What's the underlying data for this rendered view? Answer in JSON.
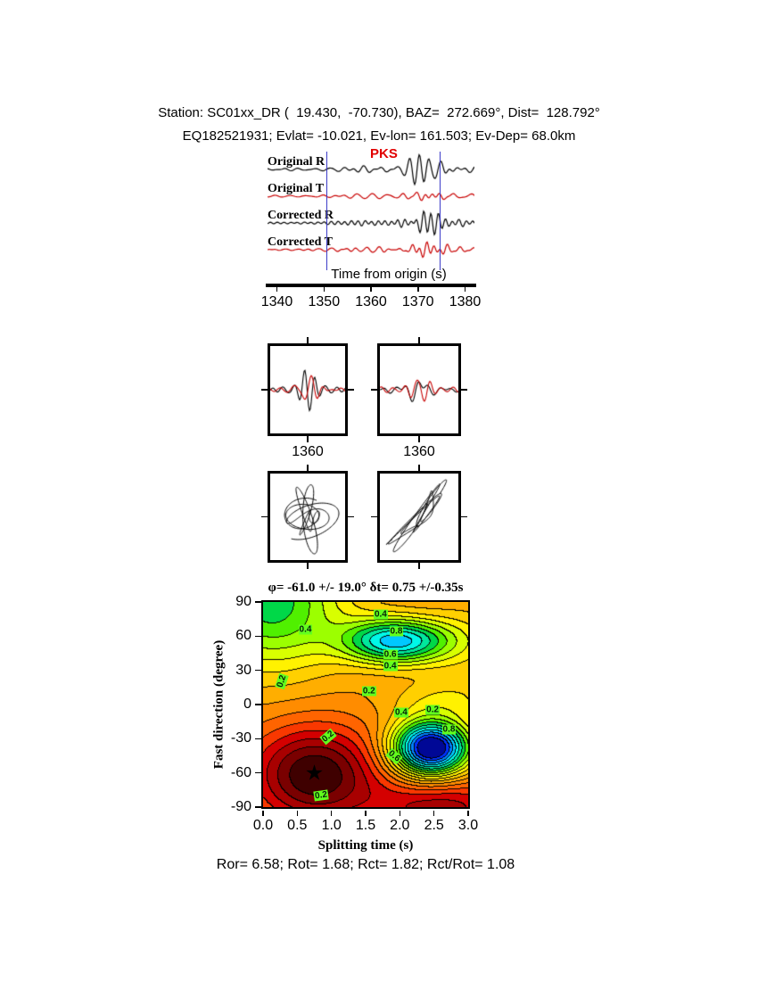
{
  "header": {
    "line1": "Station: SC01xx_DR (  19.430,  -70.730), BAZ=  272.669°, Dist=  128.792°",
    "line2": "EQ182521931; Evlat= -10.021, Ev-lon= 161.503; Ev-Dep= 68.0km"
  },
  "trace_panel": {
    "labels": [
      "Original R",
      "Original T",
      "Corrected R",
      "Corrected T"
    ],
    "phase_label": "PKS",
    "axis_title": "Time from origin (s)",
    "tick_labels": [
      "1340",
      "1350",
      "1360",
      "1370",
      "1380"
    ],
    "time_range": [
      1338,
      1382
    ],
    "pick_times": [
      1350.5,
      1374.5
    ],
    "colors": {
      "radial": "#000000",
      "transverse": "#c80000",
      "pick_line": "#3c3cc8",
      "phase": "#e10000"
    }
  },
  "zoom_panels": [
    {
      "tick_label": "1360"
    },
    {
      "tick_label": "1360"
    }
  ],
  "chart_data": {
    "type": "heatmap",
    "title": "φ= -61.0 +/- 19.0° δt= 0.75 +/-0.35s",
    "xlabel": "Splitting time (s)",
    "ylabel": "Fast direction (degree)",
    "xlim": [
      0,
      3
    ],
    "ylim": [
      -90,
      90
    ],
    "xticks": [
      "0.0",
      "0.5",
      "1.0",
      "1.5",
      "2.0",
      "2.5",
      "3.0"
    ],
    "yticks": [
      "90",
      "60",
      "30",
      "0",
      "-30",
      "-60",
      "-90"
    ],
    "grid": false,
    "legend": "none",
    "best_fit": {
      "fast_direction_deg": -61.0,
      "fast_direction_err_deg": 19.0,
      "delay_time_s": 0.75,
      "delay_time_err_s": 0.35
    },
    "star": {
      "x": 0.75,
      "y": -61,
      "glyph": "★"
    },
    "contour_level_step": 0.05,
    "contour_label_values": [
      0.2,
      0.4,
      0.6,
      0.8
    ],
    "contour_labels": [
      {
        "text": "0.4",
        "x": 0.62,
        "y": 66,
        "rot": 0
      },
      {
        "text": "0.4",
        "x": 1.72,
        "y": 79,
        "rot": 0
      },
      {
        "text": "0.8",
        "x": 1.95,
        "y": 64,
        "rot": 0
      },
      {
        "text": "0.6",
        "x": 1.86,
        "y": 44,
        "rot": 0
      },
      {
        "text": "0.4",
        "x": 1.86,
        "y": 34,
        "rot": 0
      },
      {
        "text": "0.2",
        "x": 1.55,
        "y": 12,
        "rot": 0
      },
      {
        "text": "0.2",
        "x": 0.27,
        "y": 20,
        "rot": -72
      },
      {
        "text": "0.2",
        "x": 0.95,
        "y": -28,
        "rot": -40
      },
      {
        "text": "0.4",
        "x": 2.02,
        "y": -7,
        "rot": 0
      },
      {
        "text": "0.2",
        "x": 2.48,
        "y": -5,
        "rot": 0
      },
      {
        "text": "0.8",
        "x": 2.72,
        "y": -22,
        "rot": 0
      },
      {
        "text": "0.6",
        "x": 1.92,
        "y": -45,
        "rot": 40
      },
      {
        "text": "0.2",
        "x": 0.85,
        "y": -80,
        "rot": -8
      }
    ]
  },
  "footer": {
    "line": "Ror= 6.58; Rot= 1.68; Rct= 1.82; Rct/Rot= 1.08"
  }
}
